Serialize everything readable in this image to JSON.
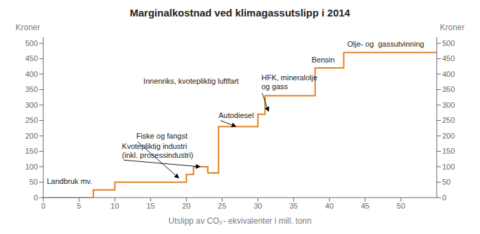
{
  "chart_data": {
    "type": "line",
    "title": "Marginalkostnad ved klimagassutslipp i 2014",
    "xlabel": "Utslipp av CO₂ - ekvivalenter i mill. tonn",
    "ylabel": "Kroner",
    "y2label": "Kroner",
    "color": "#E08020",
    "grid": false,
    "xlim": [
      0,
      55
    ],
    "xticks": [
      0,
      5,
      10,
      15,
      20,
      25,
      30,
      35,
      40,
      45,
      50
    ],
    "ylim": [
      0,
      520
    ],
    "yticks": [
      0,
      50,
      100,
      150,
      200,
      250,
      300,
      350,
      400,
      450,
      500
    ],
    "y2lim": [
      0,
      520
    ],
    "y2ticks": [
      0,
      50,
      100,
      150,
      200,
      250,
      300,
      350,
      400,
      450,
      500
    ],
    "x": [
      0,
      7,
      7,
      10,
      10,
      20,
      20,
      21,
      21,
      23,
      23,
      24.5,
      24.5,
      30,
      30,
      31,
      31,
      38,
      38,
      42,
      42,
      55
    ],
    "values": [
      0,
      0,
      25,
      25,
      50,
      50,
      75,
      75,
      100,
      100,
      80,
      80,
      230,
      230,
      270,
      270,
      330,
      330,
      420,
      420,
      470,
      470
    ],
    "annotations": [
      {
        "text": "Landbruk mv.",
        "x": 0.5,
        "y": 38
      },
      {
        "text": "Fiske og fangst",
        "x": 13.0,
        "y": 185,
        "xy": [
          19.0,
          62
        ]
      },
      {
        "text": "Kvotepliktig industri\n(inkl. prosessindustri)",
        "x": 11.0,
        "y": 122,
        "xy": [
          22.0,
          100
        ]
      },
      {
        "text": "Innenriks, kvotepliktig luftfart",
        "x": 14.0,
        "y": 362
      },
      {
        "text": "Autodiesel",
        "x": 24.5,
        "y": 252,
        "xy": [
          27.0,
          230
        ]
      },
      {
        "text": "HFK, mineralolje\nog gass",
        "x": 30.5,
        "y": 345,
        "xy": [
          31.5,
          278
        ]
      },
      {
        "text": "Bensin",
        "x": 37.5,
        "y": 432
      },
      {
        "text": "Olje- og  gassutvinning",
        "x": 42.5,
        "y": 483
      }
    ]
  }
}
